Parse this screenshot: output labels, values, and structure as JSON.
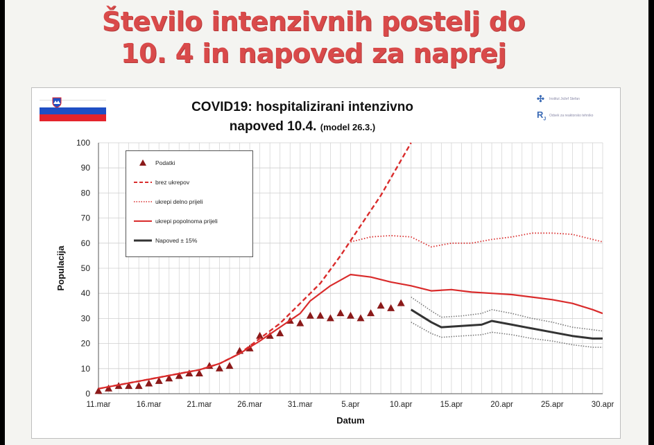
{
  "slide": {
    "title_line1": "Število intenzivnih postelj do",
    "title_line2": "10. 4 in napoved za naprej"
  },
  "flag_icon": "slovenia-flag-icon",
  "logos": [
    {
      "icon": "ijs-logo-icon",
      "text": "Institut Jožef Stefan"
    },
    {
      "icon": "rj-logo-icon",
      "text": "Odsek za reaktorsko tehniko"
    }
  ],
  "chart_data": {
    "type": "line",
    "title": "COVID19: hospitalizirani intenzivno",
    "title_line2": "napoved 10.4.",
    "subtitle": "(model 26.3.)",
    "xlabel": "Datum",
    "ylabel": "Populacija",
    "ylim": [
      0,
      100
    ],
    "yticks": [
      0,
      10,
      20,
      30,
      40,
      50,
      60,
      70,
      80,
      90,
      100
    ],
    "xrange": [
      "2020-03-11",
      "2020-04-30"
    ],
    "xticks": [
      {
        "date": "2020-03-11",
        "label": "11.mar"
      },
      {
        "date": "2020-03-16",
        "label": "16.mar"
      },
      {
        "date": "2020-03-21",
        "label": "21.mar"
      },
      {
        "date": "2020-03-26",
        "label": "26.mar"
      },
      {
        "date": "2020-03-31",
        "label": "31.mar"
      },
      {
        "date": "2020-04-05",
        "label": "5.apr"
      },
      {
        "date": "2020-04-10",
        "label": "10.apr"
      },
      {
        "date": "2020-04-15",
        "label": "15.apr"
      },
      {
        "date": "2020-04-20",
        "label": "20.apr"
      },
      {
        "date": "2020-04-25",
        "label": "25.apr"
      },
      {
        "date": "2020-04-30",
        "label": "30.apr"
      }
    ],
    "grid": true,
    "legend_position": "top-left",
    "colors": {
      "data": "#8b1a1a",
      "model": "#d92b2b",
      "forecast": "#333333",
      "band": "#777777"
    },
    "series": [
      {
        "name": "Podatki",
        "style": "triangle-markers",
        "points": [
          [
            "2020-03-11",
            1
          ],
          [
            "2020-03-12",
            2
          ],
          [
            "2020-03-13",
            3
          ],
          [
            "2020-03-14",
            3
          ],
          [
            "2020-03-15",
            3
          ],
          [
            "2020-03-16",
            4
          ],
          [
            "2020-03-17",
            5
          ],
          [
            "2020-03-18",
            6
          ],
          [
            "2020-03-19",
            7
          ],
          [
            "2020-03-20",
            8
          ],
          [
            "2020-03-21",
            8
          ],
          [
            "2020-03-22",
            11
          ],
          [
            "2020-03-23",
            10
          ],
          [
            "2020-03-24",
            11
          ],
          [
            "2020-03-25",
            17
          ],
          [
            "2020-03-26",
            18
          ],
          [
            "2020-03-27",
            23
          ],
          [
            "2020-03-28",
            23
          ],
          [
            "2020-03-29",
            24
          ],
          [
            "2020-03-30",
            29
          ],
          [
            "2020-03-31",
            28
          ],
          [
            "2020-04-01",
            31
          ],
          [
            "2020-04-02",
            31
          ],
          [
            "2020-04-03",
            30
          ],
          [
            "2020-04-04",
            32
          ],
          [
            "2020-04-05",
            31
          ],
          [
            "2020-04-06",
            30
          ],
          [
            "2020-04-07",
            32
          ],
          [
            "2020-04-08",
            35
          ],
          [
            "2020-04-09",
            34
          ],
          [
            "2020-04-10",
            36
          ]
        ]
      },
      {
        "name": "brez ukrepov",
        "style": "dashed",
        "points": [
          [
            "2020-03-11",
            2
          ],
          [
            "2020-03-13",
            3.5
          ],
          [
            "2020-03-15",
            5
          ],
          [
            "2020-03-17",
            6.5
          ],
          [
            "2020-03-19",
            8
          ],
          [
            "2020-03-21",
            9.5
          ],
          [
            "2020-03-23",
            12
          ],
          [
            "2020-03-25",
            16
          ],
          [
            "2020-03-27",
            22
          ],
          [
            "2020-03-29",
            28
          ],
          [
            "2020-03-31",
            36
          ],
          [
            "2020-04-02",
            44
          ],
          [
            "2020-04-04",
            55
          ],
          [
            "2020-04-06",
            67
          ],
          [
            "2020-04-08",
            79
          ],
          [
            "2020-04-10",
            93
          ],
          [
            "2020-04-11",
            100
          ]
        ]
      },
      {
        "name": "ukrepi delno prijeli",
        "style": "dotted",
        "points": [
          [
            "2020-04-05",
            60.5
          ],
          [
            "2020-04-07",
            62.5
          ],
          [
            "2020-04-09",
            63
          ],
          [
            "2020-04-11",
            62.5
          ],
          [
            "2020-04-13",
            58.5
          ],
          [
            "2020-04-15",
            60
          ],
          [
            "2020-04-17",
            60
          ],
          [
            "2020-04-19",
            61.5
          ],
          [
            "2020-04-21",
            62.5
          ],
          [
            "2020-04-23",
            64
          ],
          [
            "2020-04-25",
            64
          ],
          [
            "2020-04-27",
            63.5
          ],
          [
            "2020-04-29",
            61.5
          ],
          [
            "2020-04-30",
            60.5
          ]
        ]
      },
      {
        "name": "ukrepi popolnoma prijeli",
        "style": "solid",
        "points": [
          [
            "2020-03-11",
            2
          ],
          [
            "2020-03-13",
            3.5
          ],
          [
            "2020-03-15",
            5
          ],
          [
            "2020-03-17",
            6.5
          ],
          [
            "2020-03-19",
            8
          ],
          [
            "2020-03-21",
            9.5
          ],
          [
            "2020-03-23",
            12
          ],
          [
            "2020-03-25",
            16
          ],
          [
            "2020-03-27",
            21
          ],
          [
            "2020-03-29",
            26.5
          ],
          [
            "2020-03-31",
            32
          ],
          [
            "2020-04-01",
            37
          ],
          [
            "2020-04-03",
            43
          ],
          [
            "2020-04-05",
            47.5
          ],
          [
            "2020-04-07",
            46.5
          ],
          [
            "2020-04-09",
            44.5
          ],
          [
            "2020-04-11",
            43
          ],
          [
            "2020-04-13",
            41
          ],
          [
            "2020-04-15",
            41.5
          ],
          [
            "2020-04-17",
            40.5
          ],
          [
            "2020-04-19",
            40
          ],
          [
            "2020-04-21",
            39.5
          ],
          [
            "2020-04-23",
            38.5
          ],
          [
            "2020-04-25",
            37.5
          ],
          [
            "2020-04-27",
            36
          ],
          [
            "2020-04-29",
            33.5
          ],
          [
            "2020-04-30",
            32
          ]
        ]
      },
      {
        "name": "Napoved ± 15%",
        "style": "solid-thick",
        "points": [
          [
            "2020-04-11",
            33.5
          ],
          [
            "2020-04-13",
            28.5
          ],
          [
            "2020-04-14",
            26.5
          ],
          [
            "2020-04-16",
            27
          ],
          [
            "2020-04-18",
            27.5
          ],
          [
            "2020-04-19",
            29
          ],
          [
            "2020-04-21",
            27.5
          ],
          [
            "2020-04-23",
            26
          ],
          [
            "2020-04-25",
            24.5
          ],
          [
            "2020-04-27",
            23
          ],
          [
            "2020-04-29",
            22
          ],
          [
            "2020-04-30",
            22
          ]
        ]
      },
      {
        "name": "Napoved ± 15% (zgornja meja)",
        "style": "dotted-grey",
        "points": [
          [
            "2020-04-11",
            38.5
          ],
          [
            "2020-04-13",
            33
          ],
          [
            "2020-04-14",
            30.5
          ],
          [
            "2020-04-16",
            31
          ],
          [
            "2020-04-18",
            32
          ],
          [
            "2020-04-19",
            33.5
          ],
          [
            "2020-04-21",
            32
          ],
          [
            "2020-04-23",
            30
          ],
          [
            "2020-04-25",
            28.5
          ],
          [
            "2020-04-27",
            26.5
          ],
          [
            "2020-04-29",
            25.5
          ],
          [
            "2020-04-30",
            25
          ]
        ]
      },
      {
        "name": "Napoved ± 15% (spodnja meja)",
        "style": "dotted-grey",
        "points": [
          [
            "2020-04-11",
            28.5
          ],
          [
            "2020-04-13",
            24
          ],
          [
            "2020-04-14",
            22.5
          ],
          [
            "2020-04-16",
            23
          ],
          [
            "2020-04-18",
            23.5
          ],
          [
            "2020-04-19",
            24.5
          ],
          [
            "2020-04-21",
            23.5
          ],
          [
            "2020-04-23",
            22
          ],
          [
            "2020-04-25",
            21
          ],
          [
            "2020-04-27",
            19.5
          ],
          [
            "2020-04-29",
            18.5
          ],
          [
            "2020-04-30",
            18.5
          ]
        ]
      }
    ],
    "legend": [
      {
        "label": "Podatki",
        "style": "triangle-markers"
      },
      {
        "label": "brez ukrepov",
        "style": "dashed"
      },
      {
        "label": "ukrepi delno prijeli",
        "style": "dotted"
      },
      {
        "label": "ukrepi popolnoma prijeli",
        "style": "solid"
      },
      {
        "label": "Napoved ± 15%",
        "style": "solid-thick"
      }
    ]
  }
}
